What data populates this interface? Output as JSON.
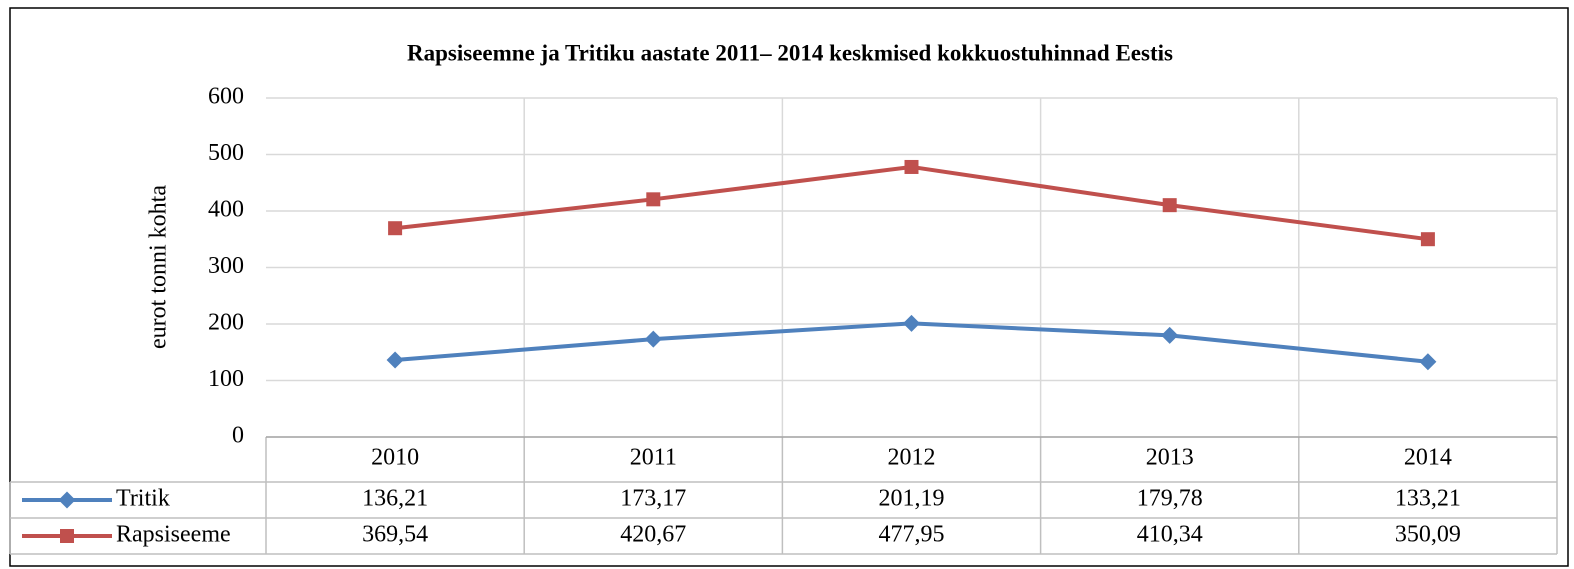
{
  "chart_data": {
    "type": "line",
    "title": "Rapsiseemne ja Tritiku aastate 2011– 2014 keskmised kokkuostuhinnad Eestis",
    "y_label": "eurot tonni kohta",
    "categories": [
      "2010",
      "2011",
      "2012",
      "2013",
      "2014"
    ],
    "series": [
      {
        "name": "Tritik",
        "color": "#4f81bd",
        "marker": "diamond",
        "values": [
          136.21,
          173.17,
          201.19,
          179.78,
          133.21
        ],
        "value_labels": [
          "136,21",
          "173,17",
          "201,19",
          "179,78",
          "133,21"
        ]
      },
      {
        "name": "Rapsiseeme",
        "color": "#c0504d",
        "marker": "square",
        "values": [
          369.54,
          420.67,
          477.95,
          410.34,
          350.09
        ],
        "value_labels": [
          "369,54",
          "420,67",
          "477,95",
          "410,34",
          "350,09"
        ]
      }
    ],
    "ylim": [
      0,
      600
    ],
    "yticks": [
      0,
      100,
      200,
      300,
      400,
      500,
      600
    ],
    "grid": true,
    "data_table": true
  }
}
